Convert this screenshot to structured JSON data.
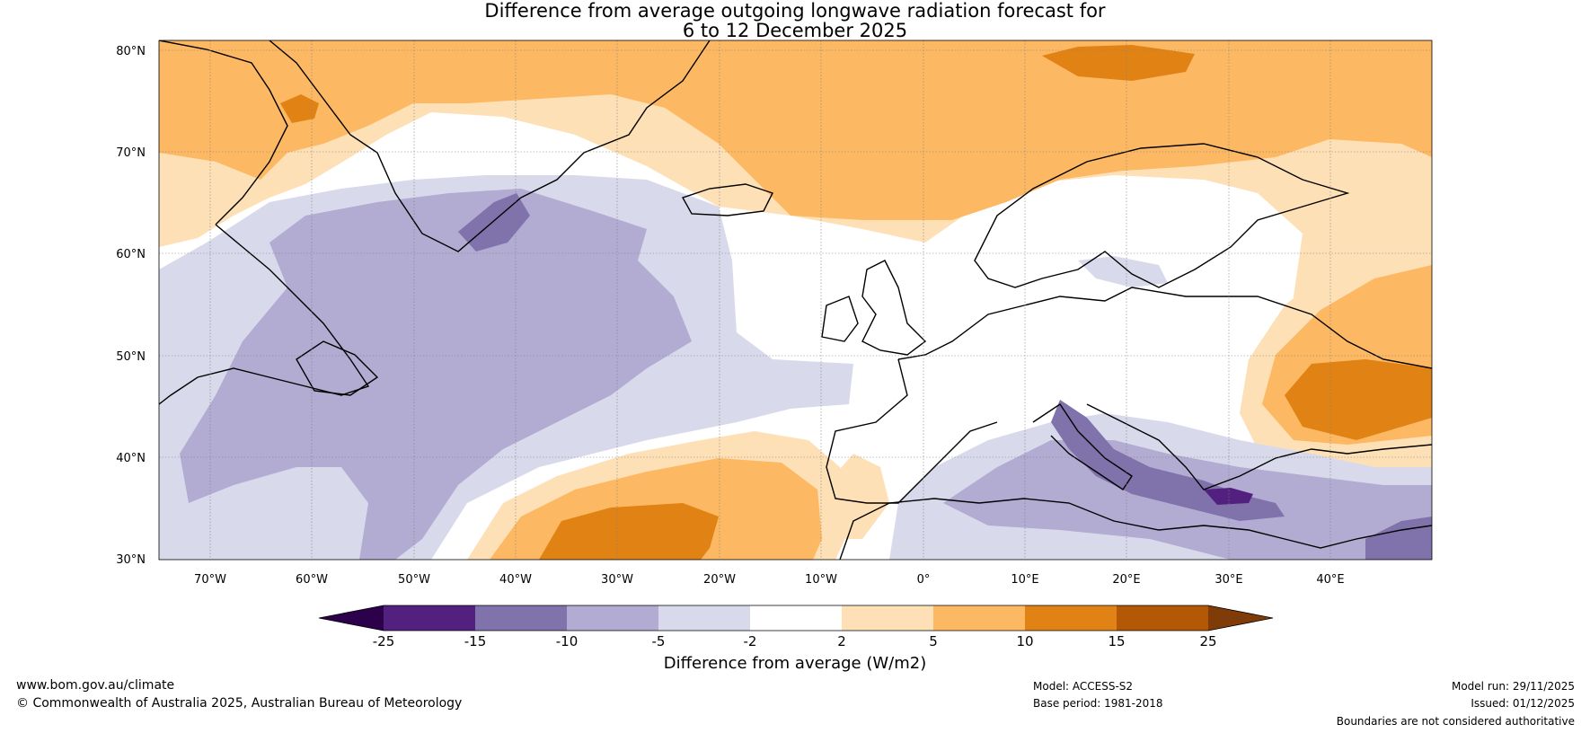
{
  "title": {
    "line1": "Difference from average outgoing longwave radiation forecast for",
    "line2": "6 to 12 December 2025"
  },
  "map": {
    "lat_labels": [
      "80°N",
      "70°N",
      "60°N",
      "50°N",
      "40°N",
      "30°N"
    ],
    "lon_labels": [
      "70°W",
      "60°W",
      "50°W",
      "40°W",
      "30°W",
      "20°W",
      "10°W",
      "0°",
      "10°E",
      "20°E",
      "30°E",
      "40°E"
    ],
    "lat_range": [
      30,
      81
    ],
    "lon_range": [
      -75,
      50
    ]
  },
  "colorbar": {
    "label": "Difference from average (W/m2)",
    "ticks": [
      "-25",
      "-15",
      "-10",
      "-5",
      "-2",
      "2",
      "5",
      "10",
      "15",
      "25"
    ],
    "colors": [
      "#52217f",
      "#8073ac",
      "#b2abd2",
      "#d8daeb",
      "#ffffff",
      "#fee0b6",
      "#fdb863",
      "#e08214",
      "#b35806"
    ],
    "under_color": "#2d004b",
    "over_color": "#7f3b08"
  },
  "footer": {
    "website": "www.bom.gov.au/climate",
    "copyright": "© Commonwealth of Australia 2025, Australian Bureau of Meteorology",
    "model": "Model: ACCESS-S2",
    "base_period": "Base period: 1981-2018",
    "model_run": "Model run: 29/11/2025",
    "issued": "Issued: 01/12/2025",
    "disclaimer": "Boundaries are not considered authoritative"
  }
}
